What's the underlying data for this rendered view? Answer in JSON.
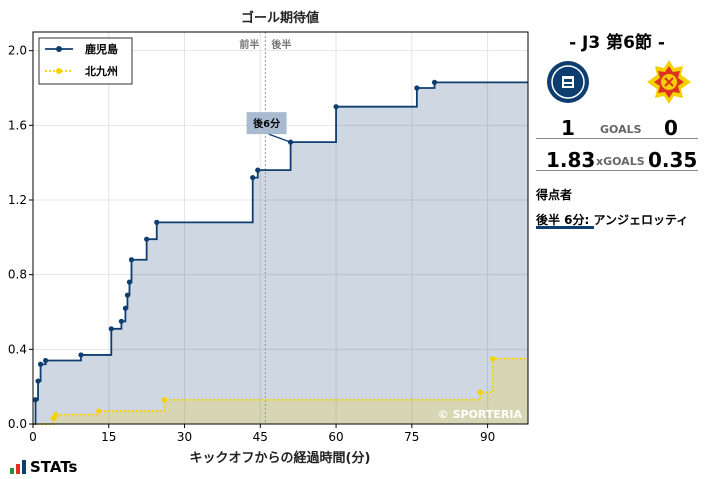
{
  "chart_data": {
    "type": "line",
    "step": true,
    "title": "ゴール期待値",
    "xlabel": "キックオフからの経過時間(分)",
    "ylabel": "",
    "xlim": [
      0,
      98
    ],
    "ylim": [
      0,
      2.1
    ],
    "xticks": [
      0,
      15,
      30,
      45,
      60,
      75,
      90
    ],
    "yticks": [
      0.0,
      0.4,
      0.8,
      1.2,
      1.6,
      2.0
    ],
    "grid": true,
    "legend_position": "top-left",
    "halftime_minute": 46,
    "halftime_labels": [
      "前半",
      "後半"
    ],
    "annotation": {
      "text": "後6分",
      "x": 51,
      "y": 1.51
    },
    "watermark": "© SPORTERIA",
    "series": [
      {
        "name": "鹿児島",
        "color": "#0e3e6f",
        "x": [
          0,
          0.5,
          1,
          1.5,
          2.5,
          9.5,
          15.5,
          17.5,
          18.3,
          18.7,
          19.1,
          19.5,
          22.5,
          24.5,
          43.5,
          44.5,
          51,
          60,
          76,
          79.5,
          98
        ],
        "y": [
          0,
          0.13,
          0.23,
          0.32,
          0.34,
          0.37,
          0.51,
          0.55,
          0.62,
          0.69,
          0.76,
          0.88,
          0.99,
          1.08,
          1.32,
          1.36,
          1.51,
          1.7,
          1.8,
          1.83,
          1.83
        ]
      },
      {
        "name": "北九州",
        "color": "#f5d000",
        "x": [
          0,
          4,
          4.5,
          13,
          26,
          88.5,
          91,
          98
        ],
        "y": [
          0,
          0.03,
          0.05,
          0.07,
          0.13,
          0.17,
          0.35,
          0.35
        ]
      }
    ]
  },
  "panel": {
    "match_title": "- J3 第6節 -",
    "home_score": "1",
    "away_score": "0",
    "goals_label": "GOALS",
    "home_xg": "1.83",
    "away_xg": "0.35",
    "xg_label": "xGOALS",
    "scorers_title": "得点者",
    "scorer": "後半  6分: アンジェロッティ",
    "home_logo_text": "KAGOSHIMA UNITED FC",
    "home_logo_color": "#0e3e6f",
    "away_logo_color": "#e03020"
  },
  "brand": {
    "text": "STATs"
  }
}
